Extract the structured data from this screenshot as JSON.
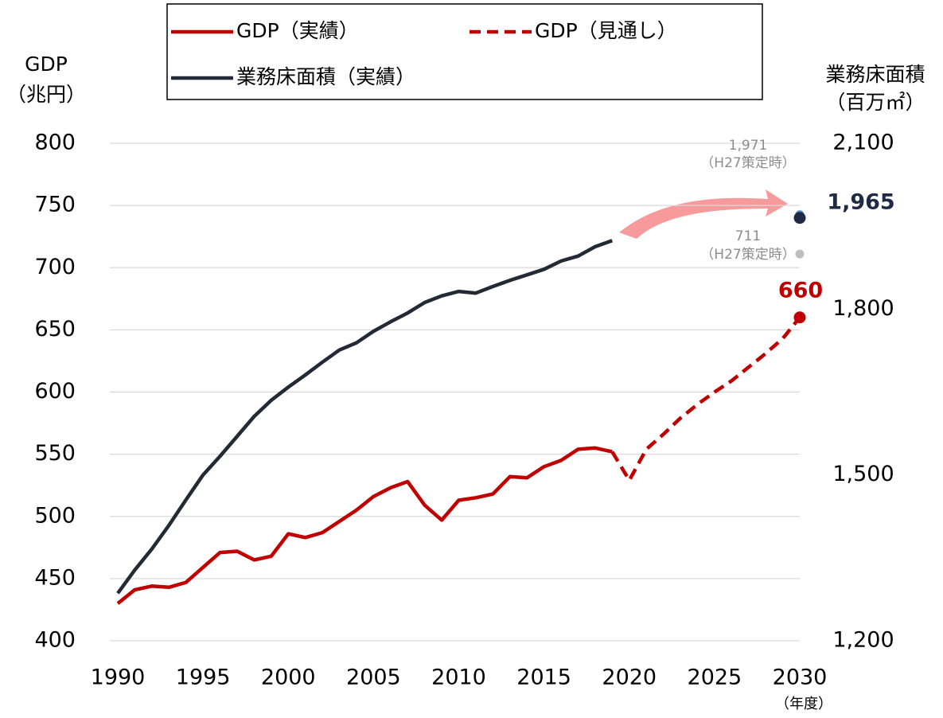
{
  "chart_data": {
    "type": "line",
    "y_title": [
      "GDP",
      "（兆円）"
    ],
    "y2_title": [
      "業務床面積",
      "（百万㎡）"
    ],
    "x_unit": "（年度）",
    "xlim": [
      1990,
      2030
    ],
    "xticks": [
      1990,
      1995,
      2000,
      2005,
      2010,
      2015,
      2020,
      2025,
      2030
    ],
    "ylim": [
      400,
      800
    ],
    "yticks": [
      400,
      450,
      500,
      550,
      600,
      650,
      700,
      750,
      800
    ],
    "y2lim": [
      1200,
      2100
    ],
    "y2ticks": [
      {
        "value": 1200,
        "label": "1,200"
      },
      {
        "value": 1500,
        "label": "1,500"
      },
      {
        "value": 1800,
        "label": "1,800"
      },
      {
        "value": 2100,
        "label": "2,100"
      }
    ],
    "grid": true,
    "legend": "top",
    "series": [
      {
        "name": "GDP（実績）",
        "color": "#c00000",
        "dash": false,
        "axis": "y",
        "x": [
          1990,
          1991,
          1992,
          1993,
          1994,
          1995,
          1996,
          1997,
          1998,
          1999,
          2000,
          2001,
          2002,
          2003,
          2004,
          2005,
          2006,
          2007,
          2008,
          2009,
          2010,
          2011,
          2012,
          2013,
          2014,
          2015,
          2016,
          2017,
          2018,
          2019
        ],
        "values": [
          430,
          441,
          444,
          443,
          447,
          459,
          471,
          472,
          465,
          468,
          486,
          483,
          487,
          496,
          505,
          516,
          523,
          528,
          509,
          497,
          513,
          515,
          518,
          532,
          531,
          540,
          545,
          554,
          555,
          552
        ]
      },
      {
        "name": "GDP（見通し）",
        "color": "#c00000",
        "dash": true,
        "axis": "y",
        "x": [
          2019,
          2020,
          2021,
          2022,
          2023,
          2024,
          2025,
          2026,
          2027,
          2028,
          2029,
          2030
        ],
        "values": [
          552,
          529,
          554,
          566,
          579,
          590,
          600,
          609,
          620,
          631,
          643,
          660
        ]
      },
      {
        "name": "業務床面積（実績）",
        "color": "#222a35",
        "dash": false,
        "axis": "y2",
        "x": [
          1990,
          1991,
          1992,
          1993,
          1994,
          1995,
          1996,
          1997,
          1998,
          1999,
          2000,
          2001,
          2002,
          2003,
          2004,
          2005,
          2006,
          2007,
          2008,
          2009,
          2010,
          2011,
          2012,
          2013,
          2014,
          2015,
          2016,
          2017,
          2018,
          2019
        ],
        "values": [
          1286,
          1328,
          1366,
          1409,
          1455,
          1500,
          1534,
          1570,
          1606,
          1635,
          1659,
          1681,
          1704,
          1726,
          1739,
          1760,
          1777,
          1793,
          1812,
          1824,
          1832,
          1829,
          1841,
          1852,
          1862,
          1872,
          1887,
          1896,
          1913,
          1924
        ]
      }
    ],
    "annotations": [
      {
        "x": 2030,
        "value": 1971,
        "axis": "y2",
        "label": "1,971",
        "note": "（H27策定時）",
        "color": "#5b8fd6"
      },
      {
        "x": 2030,
        "value": 711,
        "axis": "y",
        "label": "711",
        "note": "（H27策定時）",
        "color": "#bfbfbf"
      },
      {
        "x": 2030,
        "value": 1965,
        "axis": "y2",
        "label": "1,965",
        "color": "#1f2a44"
      },
      {
        "x": 2030,
        "value": 660,
        "axis": "y",
        "label": "660",
        "color": "#c00000"
      }
    ]
  }
}
